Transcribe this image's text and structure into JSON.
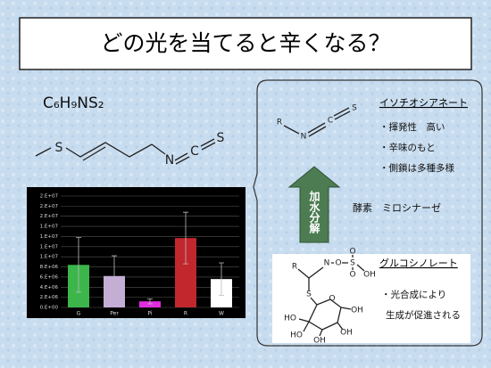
{
  "title": "どの光を当てると辛くなる？",
  "formula": "C₆H₉NS₂",
  "allyl_structure": {
    "atoms": [
      "S",
      "N",
      "C",
      "S"
    ]
  },
  "isothiocyanate": {
    "heading": "イソチオシアネート",
    "atoms": [
      "R",
      "N",
      "C",
      "S"
    ],
    "points": [
      "・揮発性　高い",
      "・辛味のもと",
      "・側鎖は多種多様"
    ]
  },
  "arrow_label": "加水分解",
  "enzyme": "酵素　ミロシナーゼ",
  "glucosinolate": {
    "heading": "グルコシノレート",
    "atoms": [
      "R",
      "N",
      "O",
      "S",
      "O",
      "O",
      "OH",
      "S",
      "O",
      "OH",
      "HO",
      "OH",
      "HO",
      "OH"
    ],
    "points": [
      "・光合成により",
      "生成が促進される"
    ]
  },
  "chart_data": {
    "type": "bar",
    "categories": [
      "G",
      "Per",
      "Pi",
      "R",
      "W"
    ],
    "values": [
      8400000,
      6200000,
      1200000,
      13700000,
      5600000
    ],
    "errors": [
      5400000,
      4000000,
      500000,
      5100000,
      3200000
    ],
    "colors": [
      "#3cb64b",
      "#c4aed6",
      "#e02ce0",
      "#c1272d",
      "#ffffff"
    ],
    "ylim": [
      0,
      22000000
    ],
    "yticks": [
      {
        "value": 0,
        "label": "0.E+00"
      },
      {
        "value": 2000000,
        "label": "2.E+06"
      },
      {
        "value": 4000000,
        "label": "4.E+06"
      },
      {
        "value": 6000000,
        "label": "6.E+06"
      },
      {
        "value": 8000000,
        "label": "8.E+06"
      },
      {
        "value": 10000000,
        "label": "1.E+07"
      },
      {
        "value": 12000000,
        "label": "1.E+07"
      },
      {
        "value": 14000000,
        "label": "1.E+07"
      },
      {
        "value": 16000000,
        "label": "1.E+07"
      },
      {
        "value": 18000000,
        "label": "2.E+07"
      },
      {
        "value": 20000000,
        "label": "2.E+07"
      },
      {
        "value": 22000000,
        "label": "2.E+07"
      }
    ],
    "grid": true
  }
}
